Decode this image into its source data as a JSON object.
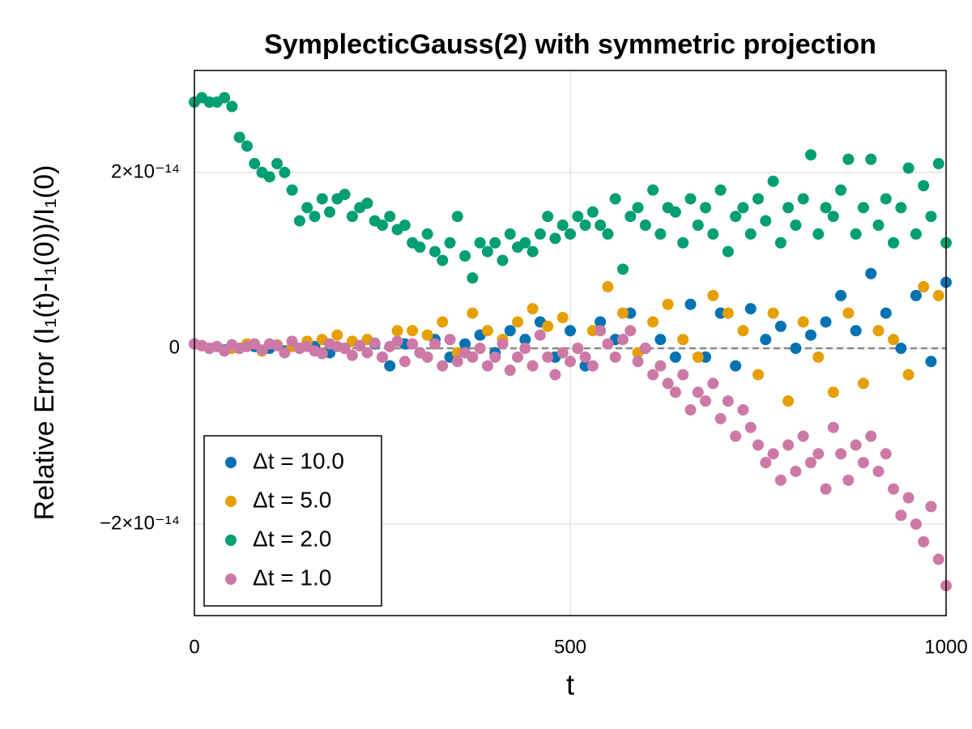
{
  "chart_data": {
    "type": "scatter",
    "title": "SymplecticGauss(2) with symmetric projection",
    "xlabel": "t",
    "ylabel": "Relative Error (I₁(t)-I₁(0))/I₁(0)",
    "xlim": [
      0,
      1000
    ],
    "ylim": [
      -3.04e-14,
      3.16e-14
    ],
    "xticks": [
      0,
      500,
      1000
    ],
    "yticks": [
      {
        "value": -2e-14,
        "label": "−2×10⁻¹⁴"
      },
      0,
      {
        "value": 2e-14,
        "label": "2×10⁻¹⁴"
      }
    ],
    "grid": true,
    "hline": 0,
    "legend": "bottom left",
    "series": [
      {
        "name": "Δt = 10.0",
        "color": "#0072b2",
        "x": [
          0,
          20,
          40,
          60,
          80,
          100,
          120,
          140,
          160,
          180,
          200,
          220,
          240,
          260,
          280,
          300,
          320,
          340,
          360,
          380,
          400,
          420,
          440,
          460,
          480,
          500,
          520,
          540,
          560,
          580,
          600,
          620,
          640,
          660,
          680,
          700,
          720,
          740,
          760,
          780,
          800,
          820,
          840,
          860,
          880,
          900,
          920,
          940,
          960,
          980,
          1000
        ],
        "values": [
          5e-16,
          0,
          -2e-16,
          0,
          2e-16,
          0,
          -3e-16,
          0,
          2e-16,
          -5e-16,
          0,
          3e-16,
          5e-16,
          -2e-15,
          5e-16,
          -5e-16,
          1e-15,
          -1e-15,
          5e-16,
          1.5e-15,
          -5e-16,
          2e-15,
          1e-15,
          3e-15,
          -1e-15,
          2e-15,
          -2e-15,
          3e-15,
          1e-15,
          4e-15,
          0,
          1e-15,
          -1e-15,
          5e-15,
          -1e-15,
          4e-15,
          -2e-15,
          4.5e-15,
          1e-15,
          2.5e-15,
          0,
          1.5e-15,
          3e-15,
          6e-15,
          2e-15,
          8.5e-15,
          4e-15,
          0,
          6e-15,
          -1.5e-15,
          7.5e-15
        ]
      },
      {
        "name": "Δt = 5.0",
        "color": "#e69f00",
        "x": [
          10,
          30,
          50,
          70,
          90,
          110,
          130,
          150,
          170,
          190,
          210,
          230,
          250,
          270,
          290,
          310,
          330,
          350,
          370,
          390,
          410,
          430,
          450,
          470,
          490,
          510,
          530,
          550,
          570,
          590,
          610,
          630,
          650,
          670,
          690,
          710,
          730,
          750,
          770,
          790,
          810,
          830,
          850,
          870,
          890,
          910,
          930,
          950,
          970,
          990
        ],
        "values": [
          3e-16,
          2e-16,
          0,
          5e-16,
          -3e-16,
          4e-16,
          2e-16,
          8e-16,
          1e-15,
          1.5e-15,
          8e-16,
          1e-15,
          -1e-15,
          2e-15,
          2e-15,
          1.5e-15,
          3e-15,
          -5e-16,
          4e-15,
          2e-15,
          1e-15,
          3e-15,
          4.5e-15,
          2.5e-15,
          3.5e-15,
          0,
          2e-15,
          7e-15,
          4e-15,
          -5e-16,
          3e-15,
          5e-15,
          1e-15,
          -1e-15,
          6e-15,
          4e-15,
          2e-15,
          -3e-15,
          4e-15,
          -6e-15,
          3e-15,
          -1e-15,
          -5e-15,
          4e-15,
          -4e-15,
          2e-15,
          1e-15,
          -3e-15,
          7e-15,
          6e-15
        ]
      },
      {
        "name": "Δt = 2.0",
        "color": "#009e73",
        "x": [
          0,
          10,
          20,
          30,
          40,
          50,
          60,
          70,
          80,
          90,
          100,
          110,
          120,
          130,
          140,
          150,
          160,
          170,
          180,
          190,
          200,
          210,
          220,
          230,
          240,
          250,
          260,
          270,
          280,
          290,
          300,
          310,
          320,
          330,
          340,
          350,
          360,
          370,
          380,
          390,
          400,
          410,
          420,
          430,
          440,
          450,
          460,
          470,
          480,
          490,
          500,
          510,
          520,
          530,
          540,
          550,
          560,
          570,
          580,
          590,
          600,
          610,
          620,
          630,
          640,
          650,
          660,
          670,
          680,
          690,
          700,
          710,
          720,
          730,
          740,
          750,
          760,
          770,
          780,
          790,
          800,
          810,
          820,
          830,
          840,
          850,
          860,
          870,
          880,
          890,
          900,
          910,
          920,
          930,
          940,
          950,
          960,
          970,
          980,
          990,
          1000
        ],
        "values": [
          2.8e-14,
          2.85e-14,
          2.8e-14,
          2.8e-14,
          2.85e-14,
          2.75e-14,
          2.4e-14,
          2.3e-14,
          2.1e-14,
          2e-14,
          1.95e-14,
          2.1e-14,
          2e-14,
          1.8e-14,
          1.45e-14,
          1.6e-14,
          1.5e-14,
          1.7e-14,
          1.55e-14,
          1.7e-14,
          1.75e-14,
          1.5e-14,
          1.6e-14,
          1.65e-14,
          1.45e-14,
          1.4e-14,
          1.5e-14,
          1.35e-14,
          1.4e-14,
          1.2e-14,
          1.15e-14,
          1.3e-14,
          1.1e-14,
          1e-14,
          1.2e-14,
          1.5e-14,
          1.05e-14,
          8e-15,
          1.2e-14,
          1.1e-14,
          1.2e-14,
          1e-14,
          1.3e-14,
          1.15e-14,
          1.2e-14,
          1.1e-14,
          1.3e-14,
          1.5e-14,
          1.25e-14,
          1.4e-14,
          1.3e-14,
          1.5e-14,
          1.4e-14,
          1.55e-14,
          1.4e-14,
          1.3e-14,
          1.7e-14,
          9e-15,
          1.5e-14,
          1.6e-14,
          1.4e-14,
          1.8e-14,
          1.3e-14,
          1.6e-14,
          1.55e-14,
          1.2e-14,
          1.7e-14,
          1.4e-14,
          1.6e-14,
          1.3e-14,
          1.8e-14,
          1.1e-14,
          1.5e-14,
          1.6e-14,
          1.3e-14,
          1.7e-14,
          1.45e-14,
          1.9e-14,
          1.2e-14,
          1.6e-14,
          1.4e-14,
          1.7e-14,
          2.2e-14,
          1.3e-14,
          1.6e-14,
          1.5e-14,
          1.8e-14,
          2.15e-14,
          1.3e-14,
          1.6e-14,
          2.15e-14,
          1.4e-14,
          1.7e-14,
          1.2e-14,
          1.6e-14,
          2.05e-14,
          1.3e-14,
          1.85e-14,
          1.5e-14,
          2.1e-14,
          1.2e-14
        ]
      },
      {
        "name": "Δt = 1.0",
        "color": "#cc79a7",
        "x": [
          0,
          10,
          20,
          30,
          40,
          50,
          60,
          70,
          80,
          90,
          100,
          110,
          120,
          130,
          140,
          150,
          160,
          170,
          180,
          190,
          200,
          210,
          220,
          230,
          240,
          250,
          260,
          270,
          280,
          290,
          300,
          310,
          320,
          330,
          340,
          350,
          360,
          370,
          380,
          390,
          400,
          410,
          420,
          430,
          440,
          450,
          460,
          470,
          480,
          490,
          500,
          510,
          520,
          530,
          540,
          550,
          560,
          570,
          580,
          590,
          600,
          610,
          620,
          630,
          640,
          650,
          660,
          670,
          680,
          690,
          700,
          710,
          720,
          730,
          740,
          750,
          760,
          770,
          780,
          790,
          800,
          810,
          820,
          830,
          840,
          850,
          860,
          870,
          880,
          890,
          900,
          910,
          920,
          930,
          940,
          950,
          960,
          970,
          980,
          990,
          1000
        ],
        "values": [
          5e-16,
          3e-16,
          0,
          2e-16,
          -3e-16,
          4e-16,
          0,
          2e-16,
          5e-16,
          -2e-16,
          5e-16,
          3e-16,
          -5e-16,
          8e-16,
          0,
          2e-16,
          -3e-16,
          -6e-16,
          5e-16,
          2e-16,
          0,
          -8e-16,
          3e-16,
          -5e-16,
          6e-16,
          -1e-15,
          2e-16,
          8e-16,
          -1.5e-15,
          5e-16,
          -5e-16,
          -1e-15,
          5e-16,
          -2e-15,
          1e-15,
          -1.5e-15,
          -5e-16,
          -1e-15,
          0,
          -2e-15,
          -1e-15,
          5e-16,
          -2.5e-15,
          -1e-15,
          0,
          -2e-15,
          1.5e-15,
          -1e-15,
          -3e-15,
          -5e-16,
          -1.5e-15,
          0,
          -1e-15,
          -2e-15,
          2e-15,
          5e-16,
          -1e-15,
          1e-15,
          2e-15,
          -1.5e-15,
          0,
          -3e-15,
          -2e-15,
          -4e-15,
          -5e-15,
          -3e-15,
          -7e-15,
          -5e-15,
          -6e-15,
          -4e-15,
          -8e-15,
          -6e-15,
          -1e-14,
          -7e-15,
          -9e-15,
          -1.1e-14,
          -1.3e-14,
          -1.2e-14,
          -1.5e-14,
          -1.1e-14,
          -1.4e-14,
          -1e-14,
          -1.3e-14,
          -1.2e-14,
          -1.6e-14,
          -9e-15,
          -1.2e-14,
          -1.5e-14,
          -1.1e-14,
          -1.3e-14,
          -1e-14,
          -1.4e-14,
          -1.2e-14,
          -1.6e-14,
          -1.9e-14,
          -1.7e-14,
          -2e-14,
          -2.2e-14,
          -1.8e-14,
          -2.4e-14,
          -2.7e-14
        ]
      }
    ]
  }
}
